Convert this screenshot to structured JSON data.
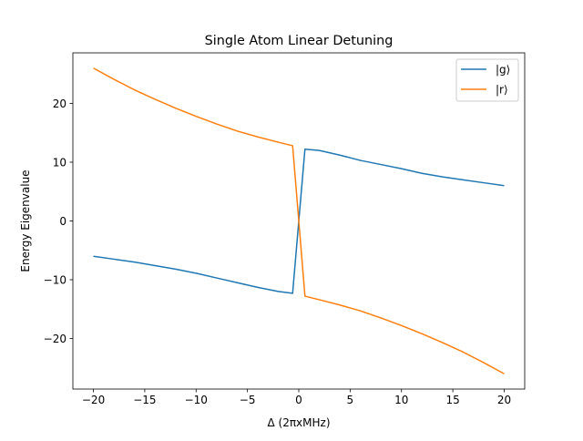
{
  "chart_data": {
    "type": "line",
    "title": "Single Atom Linear Detuning",
    "xlabel": "Δ (2πxMHz)",
    "ylabel": "Energy Eigenvalue",
    "xlim": [
      -22,
      22
    ],
    "ylim": [
      -28.6,
      28.6
    ],
    "xticks": [
      -20,
      -15,
      -10,
      -5,
      0,
      5,
      10,
      15,
      20
    ],
    "xtick_labels": [
      "−20",
      "−15",
      "−10",
      "−5",
      "0",
      "5",
      "10",
      "15",
      "20"
    ],
    "yticks": [
      -20,
      -10,
      0,
      10,
      20
    ],
    "ytick_labels": [
      "−20",
      "−10",
      "0",
      "10",
      "20"
    ],
    "grid": false,
    "legend_position": "top-right",
    "series": [
      {
        "name": "|g⟩",
        "color": "#1f77b4",
        "points": [
          [
            -20,
            -6.0
          ],
          [
            -18,
            -6.5
          ],
          [
            -16,
            -7.0
          ],
          [
            -14,
            -7.6
          ],
          [
            -12,
            -8.2
          ],
          [
            -10,
            -8.9
          ],
          [
            -8,
            -9.7
          ],
          [
            -6,
            -10.5
          ],
          [
            -4,
            -11.3
          ],
          [
            -2,
            -12.0
          ],
          [
            -0.6,
            -12.3
          ],
          [
            0,
            0
          ],
          [
            0.6,
            12.2
          ],
          [
            2,
            12.0
          ],
          [
            4,
            11.2
          ],
          [
            6,
            10.3
          ],
          [
            8,
            9.6
          ],
          [
            10,
            8.9
          ],
          [
            12,
            8.1
          ],
          [
            14,
            7.5
          ],
          [
            16,
            7.0
          ],
          [
            18,
            6.5
          ],
          [
            20,
            6.0
          ]
        ]
      },
      {
        "name": "|r⟩",
        "color": "#ff7f0e",
        "points": [
          [
            -20,
            26.0
          ],
          [
            -18,
            24.1
          ],
          [
            -16,
            22.3
          ],
          [
            -14,
            20.7
          ],
          [
            -12,
            19.2
          ],
          [
            -10,
            17.8
          ],
          [
            -8,
            16.5
          ],
          [
            -6,
            15.3
          ],
          [
            -4,
            14.3
          ],
          [
            -2,
            13.4
          ],
          [
            -0.6,
            12.8
          ],
          [
            0,
            0
          ],
          [
            0.6,
            -12.8
          ],
          [
            2,
            -13.4
          ],
          [
            4,
            -14.3
          ],
          [
            6,
            -15.3
          ],
          [
            8,
            -16.5
          ],
          [
            10,
            -17.8
          ],
          [
            12,
            -19.2
          ],
          [
            14,
            -20.7
          ],
          [
            16,
            -22.3
          ],
          [
            18,
            -24.1
          ],
          [
            20,
            -26.0
          ]
        ]
      }
    ]
  }
}
